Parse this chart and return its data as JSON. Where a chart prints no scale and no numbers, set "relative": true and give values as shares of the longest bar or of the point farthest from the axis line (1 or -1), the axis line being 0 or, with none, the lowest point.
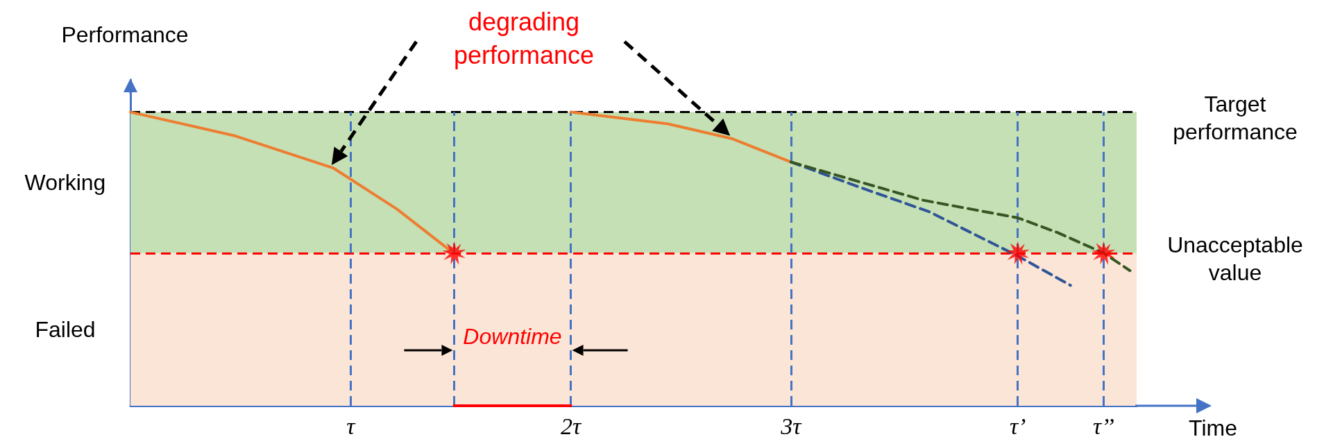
{
  "chart_data": {
    "type": "line",
    "relative": true,
    "xlabel": "Time",
    "ylabel": "Performance",
    "xlim": [
      0,
      4.57
    ],
    "xticks": [
      {
        "value": 1,
        "label": "τ"
      },
      {
        "value": 2,
        "label": "2τ"
      },
      {
        "value": 3,
        "label": "3τ"
      },
      {
        "value": 4.03,
        "label": "τ’"
      },
      {
        "value": 4.42,
        "label": "τ’’"
      }
    ],
    "series": [
      {
        "color": "#ed7d31",
        "x": [
          0,
          0.47,
          0.92,
          1.21,
          1.45
        ],
        "values": [
          1,
          0.92,
          0.81,
          0.67,
          0.53
        ],
        "line_style": "solid"
      },
      {
        "color": "#ed7d31",
        "x": [
          2,
          2.44,
          2.73,
          3
        ],
        "values": [
          1,
          0.96,
          0.91,
          0.83
        ],
        "line_style": "solid"
      },
      {
        "color": "#2f5597",
        "x": [
          3,
          3.29,
          3.63,
          4.03,
          4.27
        ],
        "values": [
          0.83,
          0.75,
          0.66,
          0.51,
          0.41
        ],
        "line_style": "dashed"
      },
      {
        "color": "#375623",
        "x": [
          3,
          3.6,
          4.03,
          4.21,
          4.42,
          4.54
        ],
        "values": [
          0.83,
          0.7,
          0.64,
          0.59,
          0.52,
          0.46
        ],
        "line_style": "dashed"
      },
      {
        "color": "#ff0000",
        "x": [
          1.47,
          2
        ],
        "values": [
          0,
          0
        ],
        "line_style": "solid"
      },
      {
        "type": "scatter",
        "color": "#ff0000",
        "marker": "star",
        "x": [
          1.47,
          4.03,
          4.42
        ],
        "values": [
          0.52,
          0.52,
          0.52
        ]
      }
    ],
    "ref_lines": [
      {
        "axis": "y",
        "value": 1,
        "label": "Target performance",
        "color": "#000000",
        "line_style": "dashed"
      },
      {
        "axis": "y",
        "value": 0.52,
        "label": "Unacceptable value",
        "color": "#ff0000",
        "line_style": "dashed"
      },
      {
        "axis": "x",
        "value": 1,
        "color": "#4472c4",
        "line_style": "dashed"
      },
      {
        "axis": "x",
        "value": 1.47,
        "color": "#4472c4",
        "line_style": "dashed"
      },
      {
        "axis": "x",
        "value": 2,
        "color": "#4472c4",
        "line_style": "dashed"
      },
      {
        "axis": "x",
        "value": 3,
        "color": "#4472c4",
        "line_style": "dashed"
      },
      {
        "axis": "x",
        "value": 4.03,
        "color": "#4472c4",
        "line_style": "dashed"
      },
      {
        "axis": "x",
        "value": 4.42,
        "color": "#4472c4",
        "line_style": "dashed"
      }
    ],
    "bands": [
      {
        "axis": "y",
        "from": 0.52,
        "to": 1,
        "label": "Working",
        "color": "#c5e0b4"
      },
      {
        "axis": "y",
        "from": 0,
        "to": 0.52,
        "label": "Failed",
        "color": "#fbe5d6"
      }
    ],
    "annotations": [
      "degrading performance",
      "Downtime"
    ],
    "grid": false
  }
}
